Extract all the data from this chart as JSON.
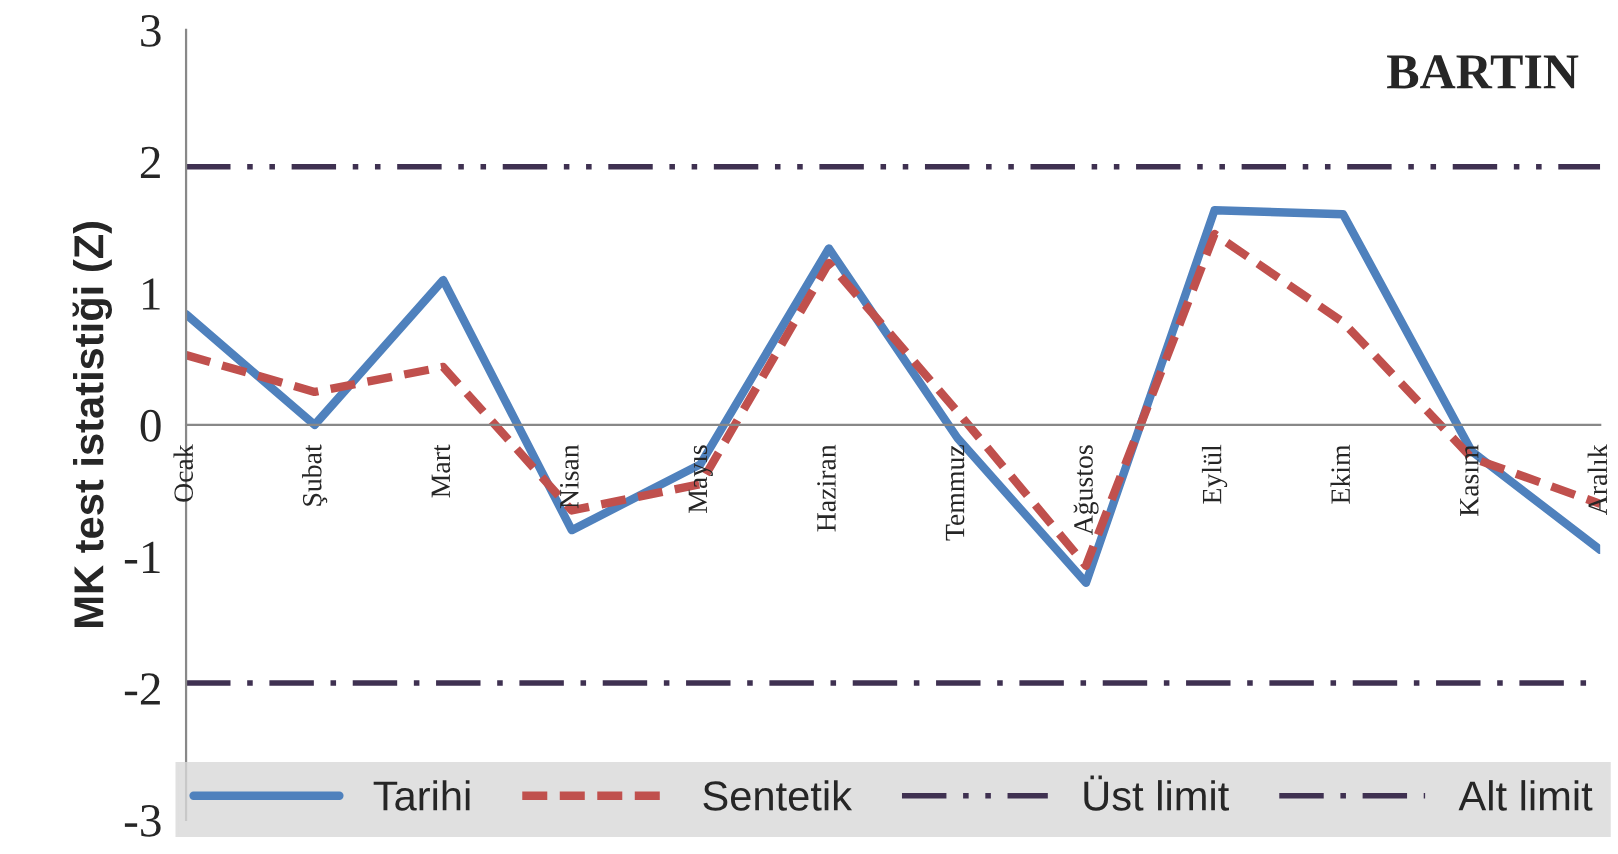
{
  "chart_data": {
    "type": "line",
    "title": "BARTIN",
    "ylabel": "MK test istatistiği (Z)",
    "categories": [
      "Ocak",
      "Şubat",
      "Mart",
      "Nisan",
      "Mayıs",
      "Haziran",
      "Temmuz",
      "Ağustos",
      "Eylül",
      "Ekim",
      "Kasım",
      "Aralık"
    ],
    "series": [
      {
        "name": "Tarihi",
        "color": "#4f81bd",
        "line_style": "solid",
        "values": [
          0.84,
          0.0,
          1.1,
          -0.8,
          -0.3,
          1.34,
          -0.1,
          -1.2,
          1.63,
          1.6,
          -0.2,
          -0.95
        ]
      },
      {
        "name": "Sentetik",
        "color": "#c0504d",
        "line_style": "dashed",
        "values": [
          0.53,
          0.25,
          0.44,
          -0.65,
          -0.45,
          1.23,
          0.1,
          -1.07,
          1.45,
          0.78,
          -0.25,
          -0.6
        ]
      }
    ],
    "ref_lines": [
      {
        "axis": "y",
        "value": 1.96,
        "label": "Üst limit",
        "color": "#3f3151",
        "line_style": "dashdotdot"
      },
      {
        "axis": "y",
        "value": -1.96,
        "label": "Alt limit",
        "color": "#3f3151",
        "line_style": "dashdot"
      }
    ],
    "ylim": [
      -3,
      3
    ],
    "yticks": [
      -3,
      -2,
      -1,
      0,
      1,
      2,
      3
    ],
    "grid": false,
    "legend": "bottom",
    "marker": "none"
  }
}
